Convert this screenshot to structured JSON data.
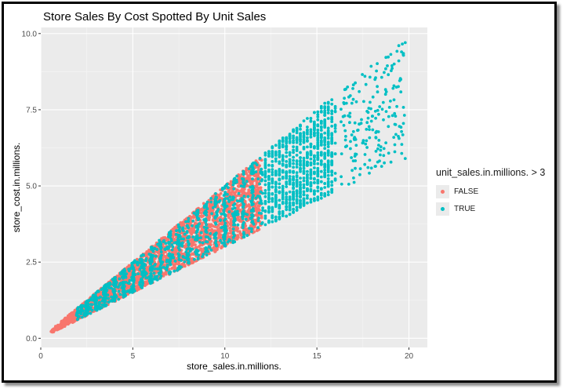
{
  "chart_data": {
    "type": "scatter",
    "title": "Store Sales By Cost Spotted By Unit Sales",
    "xlabel": "store_sales.in.millions.",
    "ylabel": "store_cost.in.millions.",
    "xlim": [
      0,
      21
    ],
    "ylim": [
      -0.3,
      10.2
    ],
    "x_ticks": [
      0,
      5,
      10,
      15,
      20
    ],
    "x_tick_labels": [
      "0",
      "5",
      "10",
      "15",
      "20"
    ],
    "y_ticks": [
      0.0,
      2.5,
      5.0,
      7.5,
      10.0
    ],
    "y_tick_labels": [
      "0.0",
      "2.5",
      "5.0",
      "7.5",
      "10.0"
    ],
    "grid": true,
    "legend": {
      "title": "unit_sales.in.millions. > 3",
      "placement": "right",
      "entries": [
        {
          "label": "FALSE",
          "color": "#F8766D"
        },
        {
          "label": "TRUE",
          "color": "#00BFC4"
        }
      ]
    },
    "series": [
      {
        "name": "FALSE",
        "color": "#F8766D",
        "description": "dense wedge of points, store_sales 0.5 to 12, store_cost between 0.3x and 0.5x store_sales",
        "sample_points": [
          [
            0.6,
            0.2
          ],
          [
            1.0,
            0.4
          ],
          [
            2.0,
            0.8
          ],
          [
            3.0,
            1.2
          ],
          [
            4.0,
            1.6
          ],
          [
            5.0,
            2.0
          ],
          [
            6.0,
            2.4
          ],
          [
            7.0,
            2.8
          ],
          [
            8.0,
            3.2
          ],
          [
            9.0,
            3.6
          ],
          [
            10.0,
            4.0
          ],
          [
            11.0,
            4.4
          ],
          [
            12.0,
            4.8
          ],
          [
            12.0,
            5.9
          ],
          [
            12.0,
            3.7
          ]
        ]
      },
      {
        "name": "TRUE",
        "color": "#00BFC4",
        "description": "points from store_sales 2 to 20; mixed with FALSE below 12, alone above 12; store_cost between 0.3x and 0.5x store_sales",
        "sample_points": [
          [
            2.5,
            1.0
          ],
          [
            4.5,
            1.7
          ],
          [
            6.0,
            2.5
          ],
          [
            8.0,
            3.4
          ],
          [
            10.0,
            4.2
          ],
          [
            12.5,
            5.0
          ],
          [
            14.0,
            5.5
          ],
          [
            15.0,
            6.0
          ],
          [
            16.0,
            6.5
          ],
          [
            17.0,
            7.0
          ],
          [
            18.0,
            7.5
          ],
          [
            19.0,
            8.0
          ],
          [
            19.8,
            9.7
          ],
          [
            19.8,
            5.9
          ]
        ]
      }
    ]
  }
}
